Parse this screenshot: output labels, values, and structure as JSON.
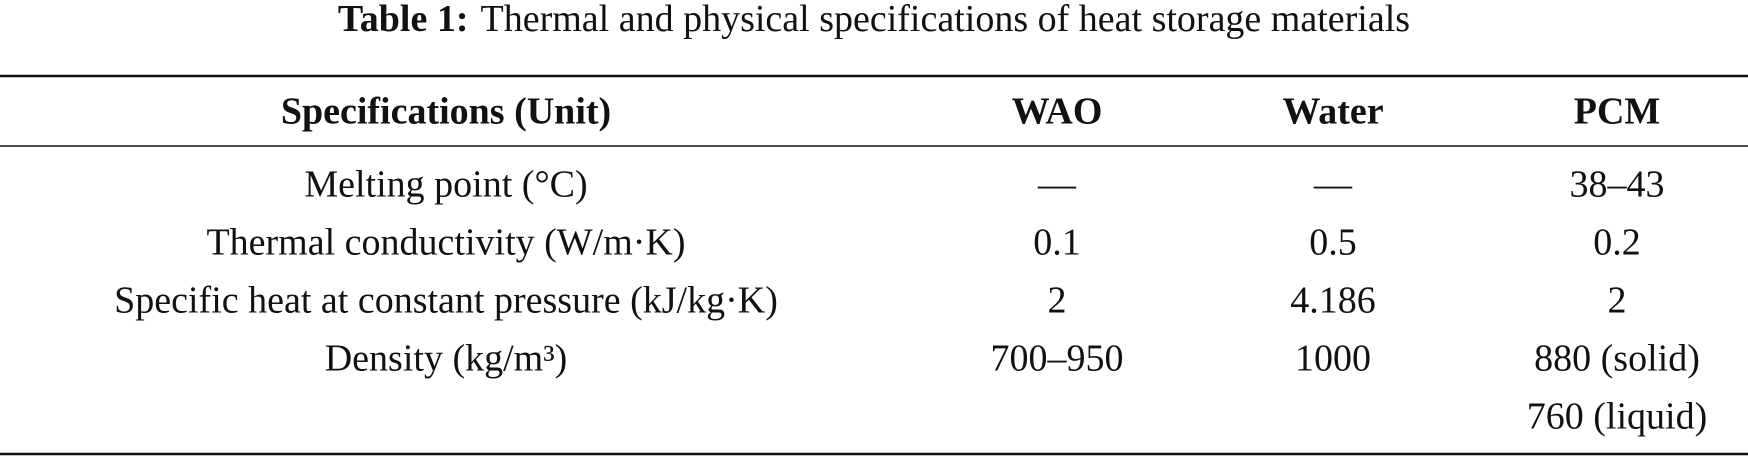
{
  "caption": {
    "label": "Table 1:",
    "text": "Thermal and physical specifications of heat storage materials"
  },
  "table": {
    "header": [
      "Specifications (Unit)",
      "WAO",
      "Water",
      "PCM"
    ],
    "rows": [
      [
        "Melting point (°C)",
        "—",
        "—",
        "38–43"
      ],
      [
        "Thermal conductivity (W/m·K)",
        "0.1",
        "0.5",
        "0.2"
      ],
      [
        "Specific heat at constant pressure (kJ/kg·K)",
        "2",
        "4.186",
        "2"
      ],
      [
        "Density (kg/m³)",
        "700–950",
        "1000",
        [
          "880 (solid)",
          "760 (liquid)"
        ]
      ]
    ]
  }
}
